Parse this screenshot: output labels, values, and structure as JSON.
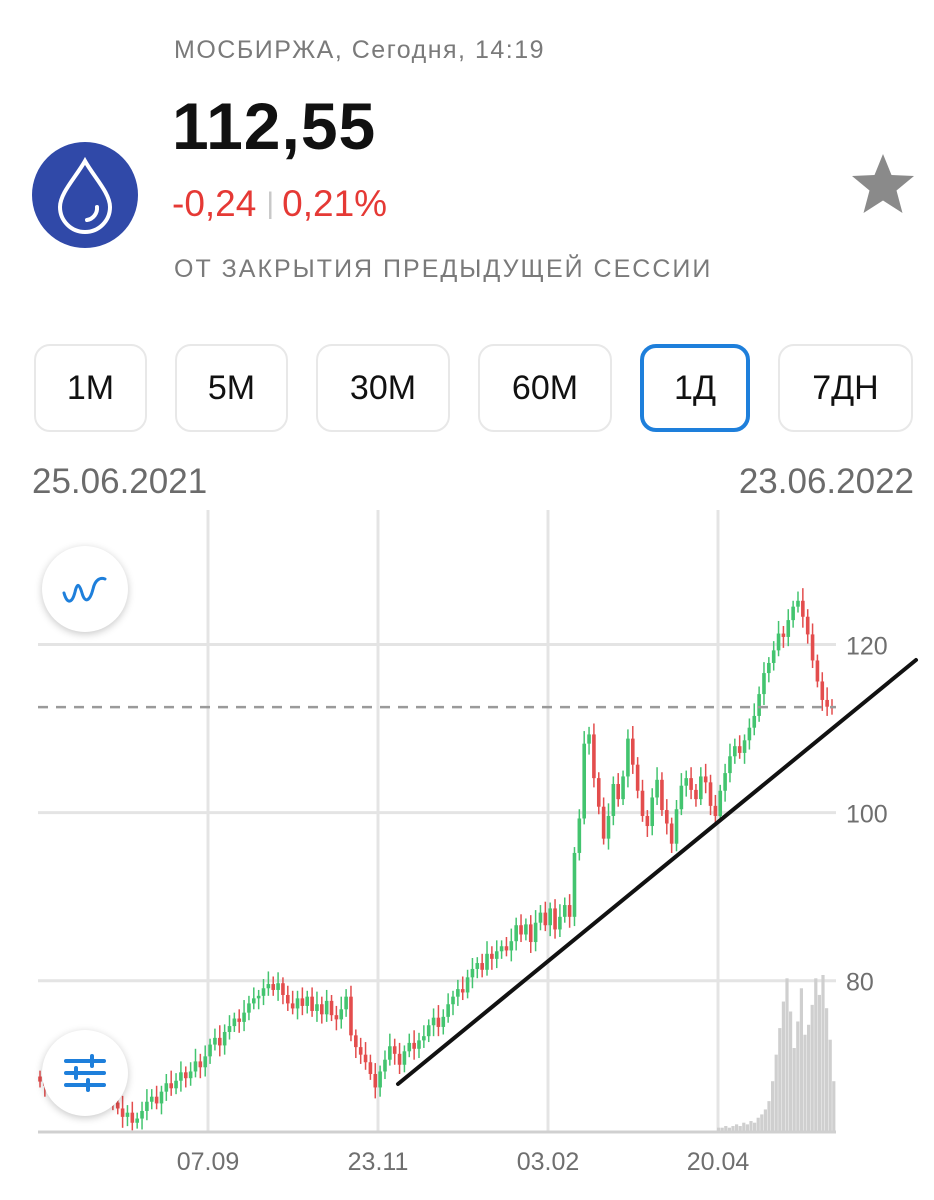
{
  "header": {
    "exchange_line": "МОСБИРЖА, Сегодня, 14:19",
    "price": "112,55",
    "change_abs": "-0,24",
    "change_sep": "|",
    "change_pct": "0,21%",
    "since_label": "ОТ ЗАКРЫТИЯ ПРЕДЫДУЩЕЙ СЕССИИ"
  },
  "icons": {
    "logo": "water-drop-icon",
    "favorite": "star-icon",
    "indicators": "line-wave-icon",
    "settings": "sliders-icon"
  },
  "intervals": [
    "1М",
    "5М",
    "30М",
    "60М",
    "1Д",
    "7ДН"
  ],
  "active_interval": "1Д",
  "range": {
    "from": "25.06.2021",
    "to": "23.06.2022"
  },
  "colors": {
    "up": "#43c46f",
    "down": "#e34d4d",
    "accent": "#1e7fdb",
    "logo_bg": "#3049a8",
    "change_neg": "#e53935",
    "volume": "#cfcfcf"
  },
  "chart_data": {
    "type": "candlestick",
    "xlabels": [
      "07.09",
      "23.11",
      "03.02",
      "20.04"
    ],
    "ylabels": [
      "80",
      "100",
      "120"
    ],
    "ylim": [
      62,
      136
    ],
    "current_price": 112.55,
    "approx_closes": [
      68,
      67.5,
      69,
      67.8,
      70,
      68.5,
      69.5,
      70.5,
      69.2,
      68.4,
      67.8,
      67.2,
      66.5,
      67.2,
      66.1,
      65.5,
      64.8,
      63.8,
      64.3,
      63.1,
      63.6,
      64.5,
      65.6,
      66.2,
      65.4,
      66.8,
      67.8,
      67.2,
      68.1,
      69.1,
      68.4,
      69.2,
      70.4,
      69.7,
      71,
      72.4,
      73.2,
      72.3,
      73.9,
      74.6,
      75.5,
      75.1,
      76.2,
      77.3,
      77.9,
      78.2,
      79.1,
      79.6,
      78.9,
      79.7,
      78.3,
      77.3,
      76.7,
      77.9,
      77,
      78.1,
      76.4,
      77.2,
      76,
      77.6,
      75.9,
      75.4,
      76.6,
      78.1,
      73.5,
      72.1,
      71.2,
      70.3,
      68.9,
      67.3,
      69.2,
      70.6,
      72.2,
      71.3,
      70,
      71.6,
      72.6,
      71.9,
      72.9,
      73.4,
      74.7,
      75.6,
      74.5,
      75.7,
      77.2,
      78.1,
      79,
      78.6,
      80.4,
      81.4,
      82.1,
      81.3,
      83.2,
      82.6,
      83.5,
      84.1,
      83.6,
      84.7,
      86.6,
      85.5,
      86.7,
      84.6,
      86.9,
      88.1,
      86.6,
      88.6,
      86.1,
      87.6,
      89,
      87.6,
      95.2,
      99.3,
      108.2,
      109.3,
      104.1,
      100.7,
      96.9,
      99.6,
      103.4,
      101.6,
      104.3,
      108.8,
      105.7,
      102.6,
      99.6,
      98.4,
      101.8,
      103.9,
      100.3,
      98.7,
      96.3,
      100.4,
      103.2,
      104.1,
      102.7,
      101.6,
      104.3,
      103.6,
      100.8,
      99.6,
      102.6,
      104.7,
      106.7,
      107.9,
      107.1,
      108.6,
      110.1,
      111.5,
      114.1,
      116.6,
      117.8,
      119.3,
      121.3,
      120.9,
      122.9,
      124.5,
      125.2,
      123.3,
      121.2,
      118.1,
      115.6,
      113.4,
      112.6,
      112.55
    ],
    "volume_relative": [
      0.02,
      0.02,
      0.03,
      0.02,
      0.03,
      0.04,
      0.03,
      0.05,
      0.04,
      0.06,
      0.05,
      0.08,
      0.1,
      0.13,
      0.18,
      0.3,
      0.46,
      0.62,
      0.78,
      0.92,
      0.72,
      0.5,
      0.66,
      0.86,
      0.58,
      0.64,
      0.76,
      0.92,
      0.82,
      0.94,
      0.74,
      0.55,
      0.3
    ],
    "volume_scale_max": 0.94
  }
}
